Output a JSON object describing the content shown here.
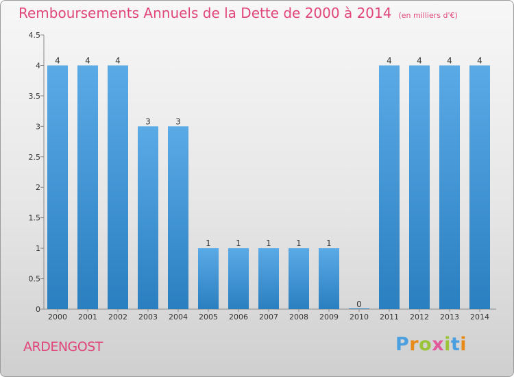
{
  "chart_data": {
    "type": "bar",
    "title": "Remboursements Annuels de la Dette de 2000 à 2014",
    "unit": "(en milliers d'€)",
    "categories": [
      "2000",
      "2001",
      "2002",
      "2003",
      "2004",
      "2005",
      "2006",
      "2007",
      "2008",
      "2009",
      "2010",
      "2011",
      "2012",
      "2013",
      "2014"
    ],
    "values": [
      4,
      4,
      4,
      3,
      3,
      1,
      1,
      1,
      1,
      1,
      0,
      4,
      4,
      4,
      4
    ],
    "data_labels": [
      "4",
      "4",
      "4",
      "3",
      "3",
      "1",
      "1",
      "1",
      "1",
      "1",
      "0",
      "4",
      "4",
      "4",
      "4"
    ],
    "ylim": [
      0,
      4.5
    ],
    "yticks": [
      "0",
      "0.5",
      "1",
      "1.5",
      "2",
      "2.5",
      "3",
      "3.5",
      "4",
      "4.5"
    ],
    "grid": false,
    "colors": {
      "bar_top": "#5aaae6",
      "bar_bottom": "#2a7fc0",
      "title": "#e0457b"
    }
  },
  "location": "ARDENGOST",
  "logo": {
    "letters": [
      "P",
      "r",
      "o",
      "x",
      "i",
      "t",
      "i"
    ],
    "colors": [
      "#4a9fe0",
      "#e88a1a",
      "#9bc43a",
      "#e05a9a",
      "#9bc43a",
      "#4a9fe0",
      "#e88a1a"
    ]
  }
}
